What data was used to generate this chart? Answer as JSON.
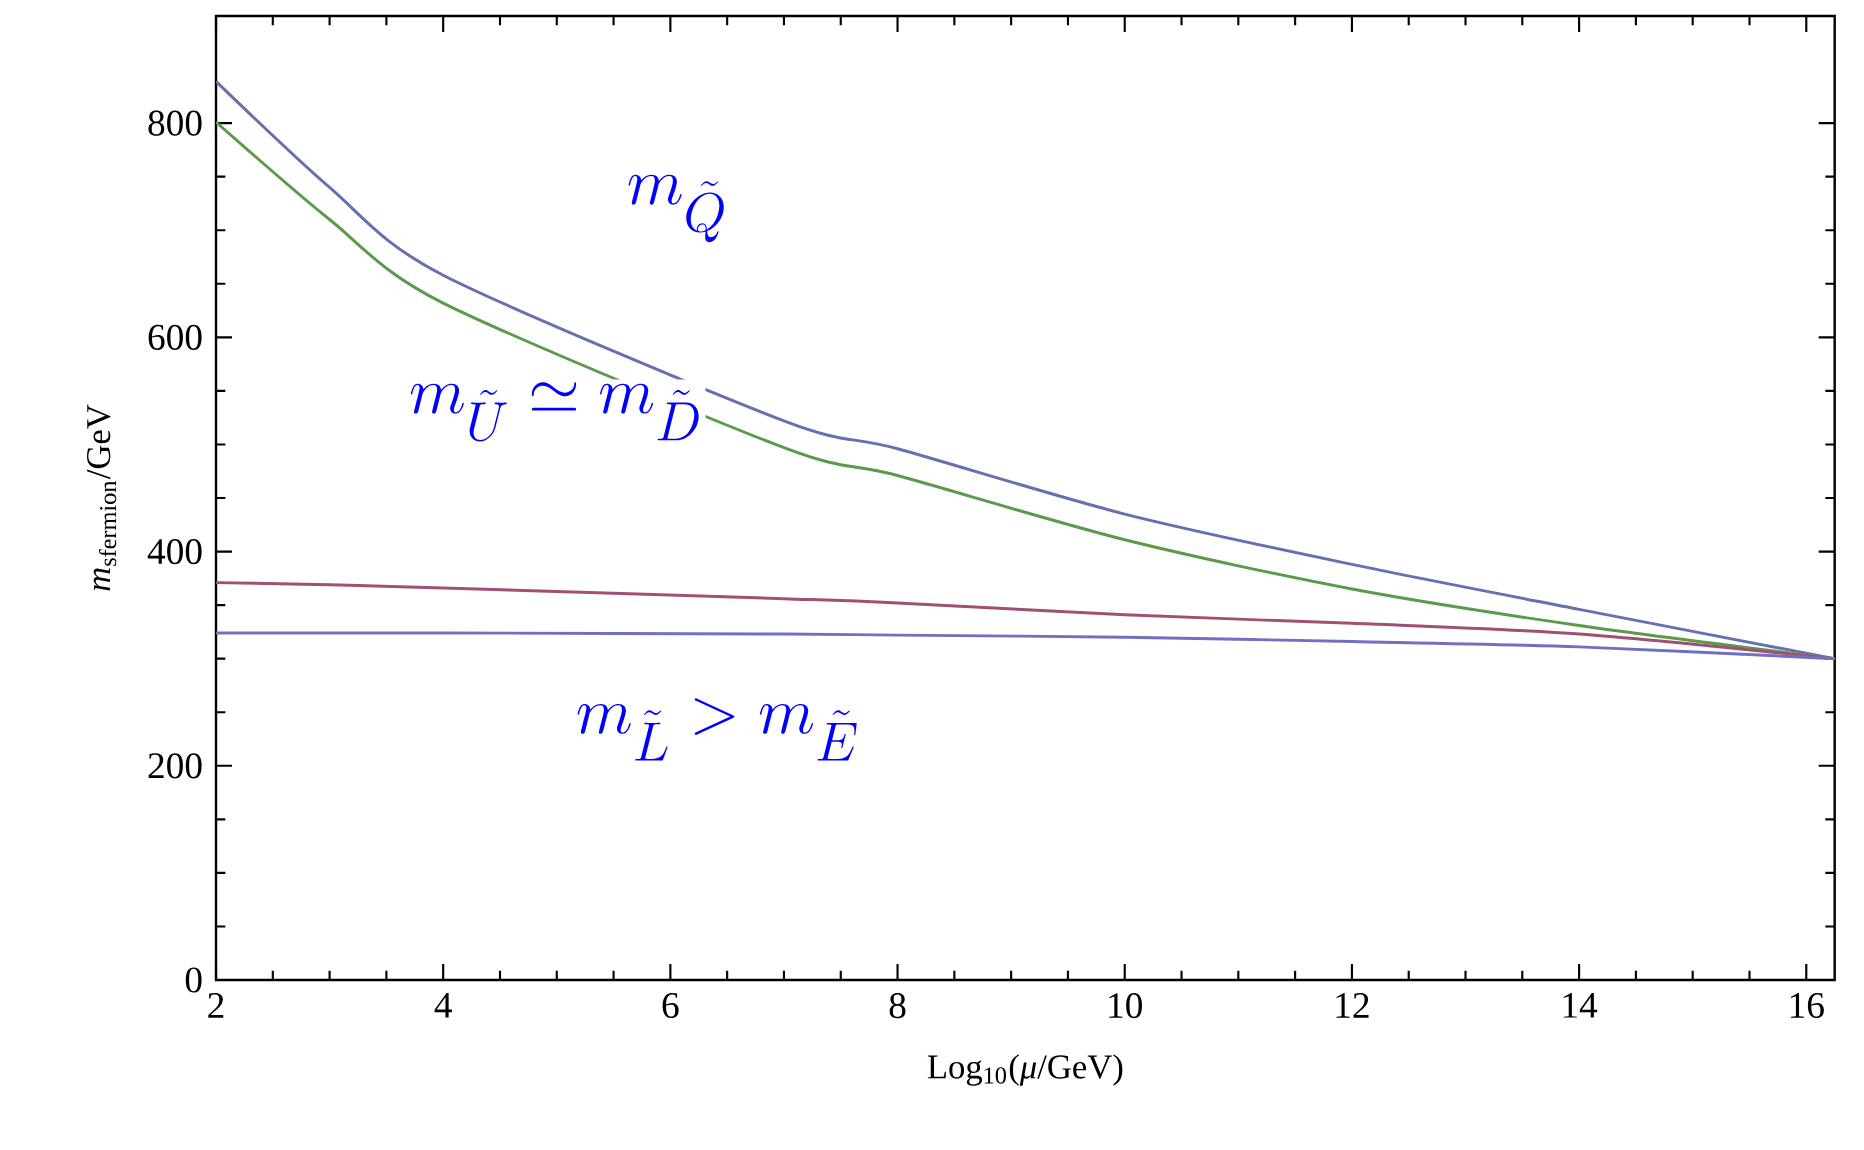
{
  "chart_data": {
    "type": "line",
    "xlabel": "Log$_{10}$(*μ*/GeV)",
    "ylabel": "*m*$_{sfermion}$/GeV",
    "x": [
      2,
      3,
      4,
      7,
      8,
      10,
      12,
      14,
      16.25
    ],
    "series": [
      {
        "color": "#6670b0",
        "values": [
          839,
          740,
          658,
          522,
          496,
          435,
          388,
          346,
          300
        ]
      },
      {
        "color": "#5a9a4a",
        "values": [
          801,
          710,
          632,
          497,
          471,
          411,
          365,
          331,
          300
        ]
      },
      {
        "color": "#a05070",
        "values": [
          371,
          369,
          366,
          356,
          352,
          341,
          333,
          323,
          300
        ]
      },
      {
        "color": "#7070c0",
        "values": [
          324,
          324,
          324,
          323,
          322,
          320,
          316,
          311,
          300
        ]
      }
    ],
    "xlim": [
      2,
      16.25
    ],
    "ylim": [
      0,
      900
    ],
    "xticks": [
      2,
      4,
      6,
      8,
      10,
      12,
      14,
      16
    ],
    "yticks": [
      0,
      200,
      400,
      600,
      800
    ],
    "annotations": [
      "m_{\\tilde{Q}}",
      "m_{\\tilde{U}} \\simeq m_{\\tilde{D}}",
      "m_{\\tilde{L}} > m_{\\tilde{E}}"
    ],
    "marker": "none",
    "line_style": "solid"
  }
}
